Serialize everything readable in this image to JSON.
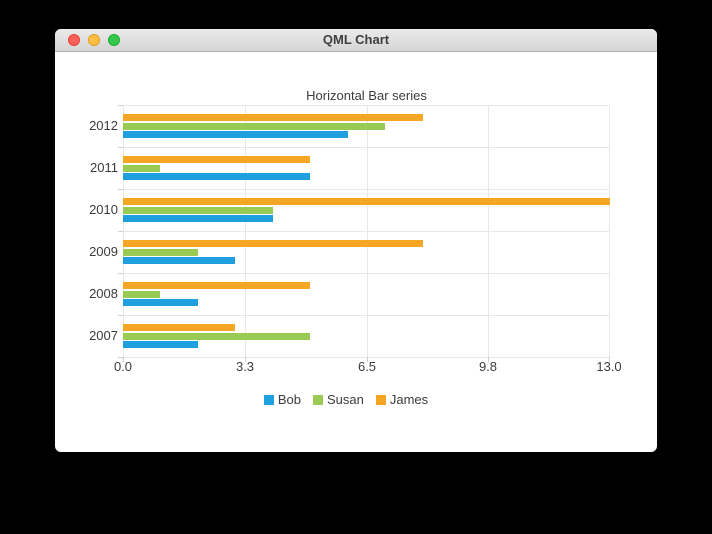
{
  "window": {
    "title": "QML Chart",
    "traffic_lights": [
      {
        "name": "close",
        "color": "#fc5f57"
      },
      {
        "name": "minimize",
        "color": "#fdbe41"
      },
      {
        "name": "zoom",
        "color": "#34c84a"
      }
    ]
  },
  "chart_data": {
    "type": "bar",
    "orientation": "horizontal",
    "title": "Horizontal Bar series",
    "categories": [
      "2012",
      "2011",
      "2010",
      "2009",
      "2008",
      "2007"
    ],
    "series": [
      {
        "name": "Bob",
        "color": "#209fdf",
        "values": [
          6,
          5,
          4,
          3,
          2,
          2
        ]
      },
      {
        "name": "Susan",
        "color": "#99ca53",
        "values": [
          7,
          1,
          4,
          2,
          1,
          5
        ]
      },
      {
        "name": "James",
        "color": "#f6a625",
        "values": [
          8,
          5,
          13,
          8,
          5,
          3
        ]
      }
    ],
    "bar_draw_order_top_to_bottom": [
      "James",
      "Susan",
      "Bob"
    ],
    "x_axis": {
      "min": 0,
      "max": 13,
      "tick_values": [
        0,
        3.25,
        6.5,
        9.75,
        13
      ],
      "tick_labels": [
        "0.0",
        "3.3",
        "6.5",
        "9.8",
        "13.0"
      ]
    },
    "y_axis": {
      "label_side": "left"
    },
    "grid": true,
    "legend": {
      "position": "bottom",
      "entries": [
        "Bob",
        "Susan",
        "James"
      ]
    },
    "colors": {
      "grid": "#e8e8e8",
      "axis": "#cfcfd3",
      "text": "#3c3c40"
    }
  }
}
